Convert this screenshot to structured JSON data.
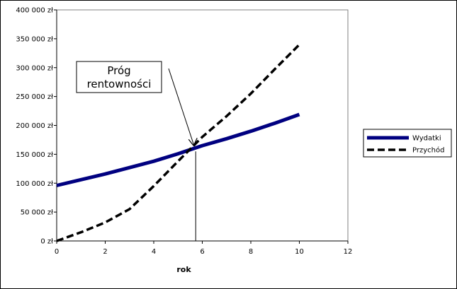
{
  "chart_data": {
    "type": "line",
    "title": "",
    "xlabel": "rok",
    "ylabel": "",
    "xlim": [
      0,
      12
    ],
    "ylim": [
      0,
      400000
    ],
    "x_ticks": [
      0,
      2,
      4,
      6,
      8,
      10,
      12
    ],
    "y_ticks": [
      0,
      50000,
      100000,
      150000,
      200000,
      250000,
      300000,
      350000,
      400000
    ],
    "y_tick_labels": [
      "0 zł",
      "50 000 zł",
      "100 000 zł",
      "150 000 zł",
      "200 000 zł",
      "250 000 zł",
      "300 000 zł",
      "350 000 zł",
      "400 000 zł"
    ],
    "grid": false,
    "legend_position": "right",
    "series": [
      {
        "name": "Wydatki",
        "color": "#000080",
        "style": "solid",
        "x": [
          0,
          1,
          2,
          3,
          4,
          5,
          6,
          7,
          8,
          9,
          10
        ],
        "y": [
          96000,
          106000,
          116000,
          127000,
          138000,
          151000,
          165000,
          177000,
          190000,
          204000,
          219000
        ]
      },
      {
        "name": "Przychód",
        "color": "#000000",
        "style": "dashed",
        "x": [
          0,
          1,
          2,
          3,
          4,
          5,
          6,
          7,
          8,
          9,
          10
        ],
        "y": [
          0,
          15000,
          32000,
          55000,
          95000,
          138000,
          180000,
          216000,
          255000,
          298000,
          340000
        ]
      }
    ],
    "annotations": [
      {
        "text_lines": [
          "Próg",
          "rentowności"
        ],
        "x": 5.7,
        "y": 160000
      }
    ]
  }
}
